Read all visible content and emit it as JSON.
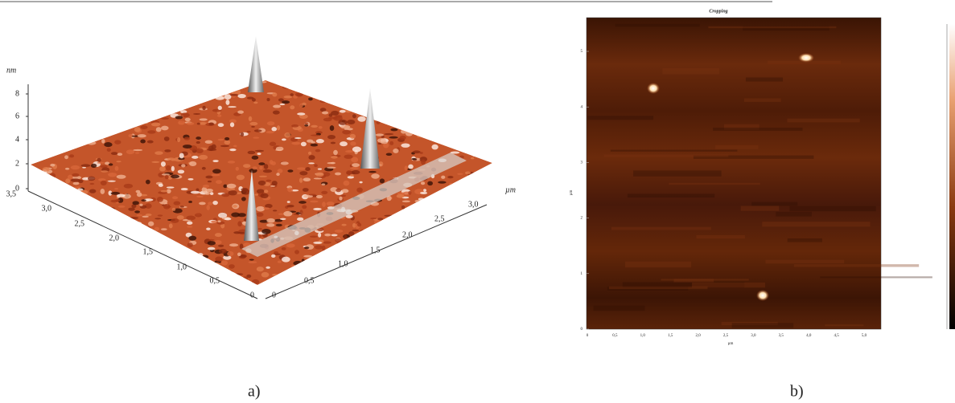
{
  "panel_a": {
    "z_unit": "nm",
    "z_ticks": [
      "0",
      "2",
      "4",
      "6",
      "8"
    ],
    "left_ticks": [
      "3,5",
      "3,0",
      "2,5",
      "2,0",
      "1,5",
      "1,0",
      "0,5",
      "0"
    ],
    "right_ticks": [
      "0",
      "0,5",
      "1,0",
      "1,5",
      "2,0",
      "2,5",
      "3,0"
    ],
    "xy_unit": "µm",
    "label": "a)"
  },
  "panel_b": {
    "title": "Cropping",
    "y_ticks": [
      "0",
      "1",
      "2",
      "3",
      "4",
      "5"
    ],
    "x_ticks": [
      "0",
      "0,5",
      "1,0",
      "1,5",
      "2,0",
      "2,5",
      "3,0",
      "3,5",
      "4,0",
      "4,5",
      "5,0"
    ],
    "x_unit": "µm",
    "y_unit": "µm",
    "label": "b)"
  }
}
